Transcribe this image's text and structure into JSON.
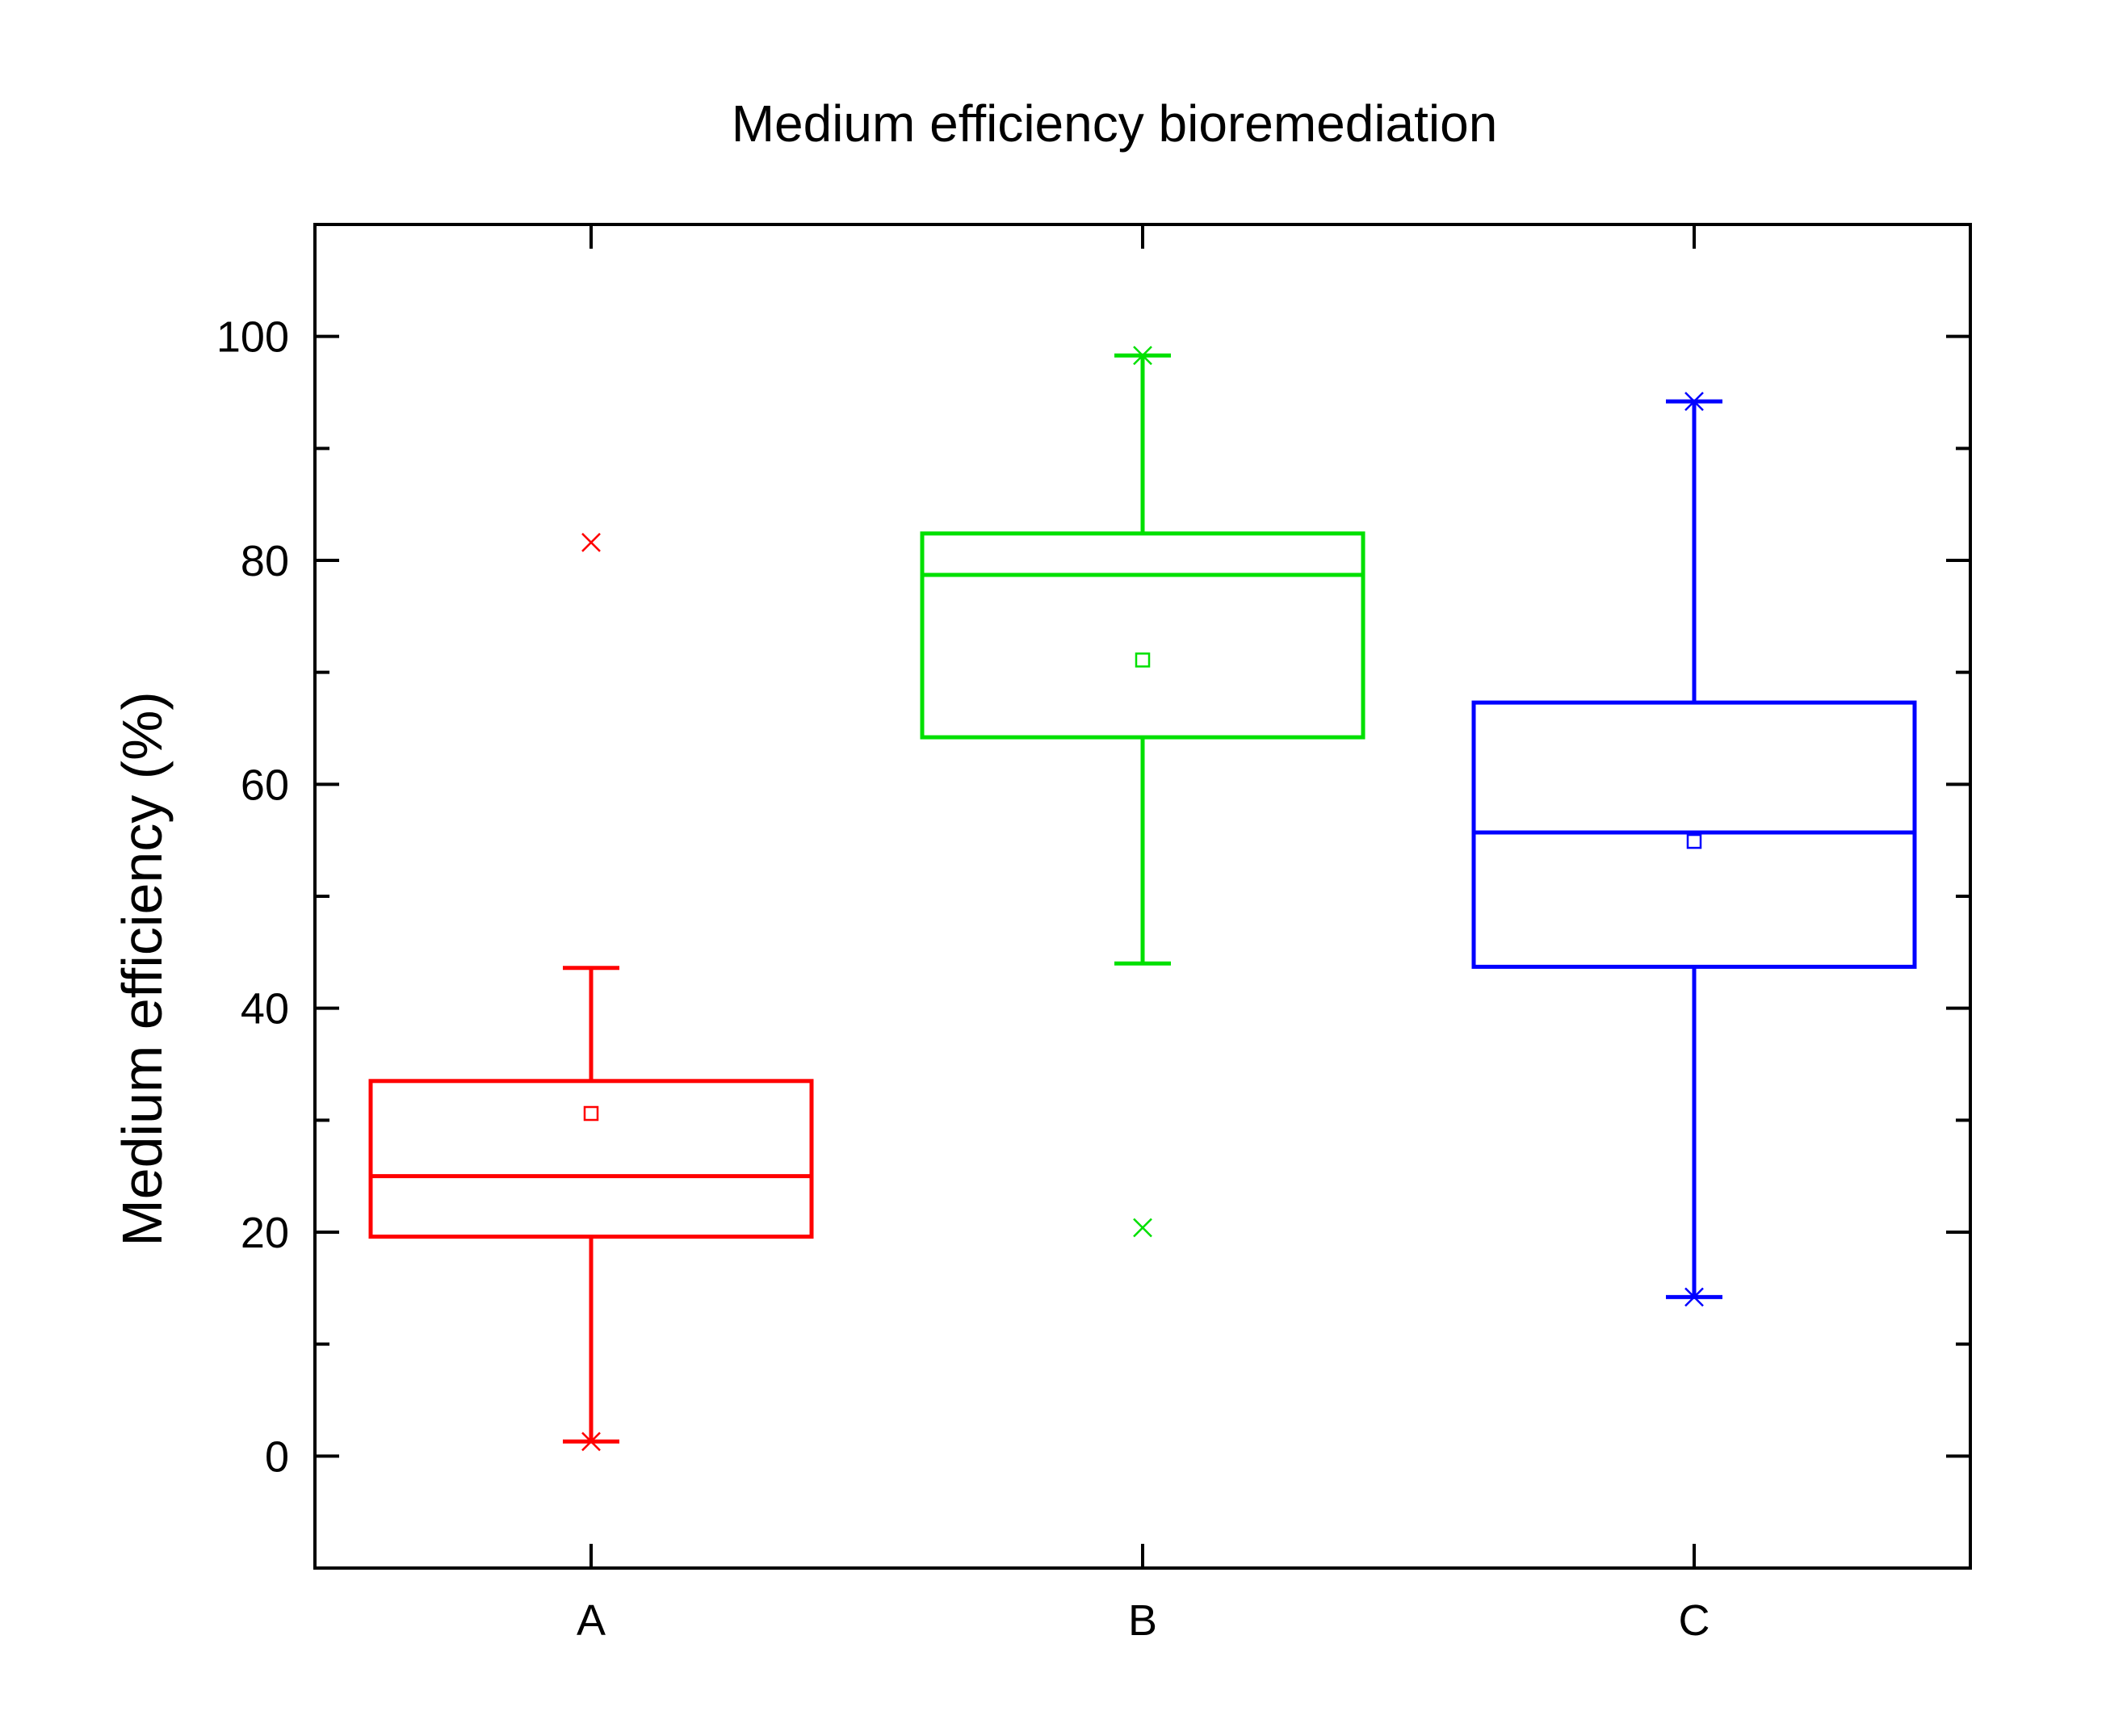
{
  "chart_data": {
    "type": "box",
    "title": "Medium efficiency bioremediation",
    "xlabel": "",
    "ylabel": "Medium efficiency (%)",
    "ylim": [
      -10,
      110
    ],
    "yticks": [
      0,
      20,
      40,
      60,
      80,
      100
    ],
    "grid": false,
    "legend": "none",
    "categories": [
      "A",
      "B",
      "C"
    ],
    "boxes": [
      {
        "category": "A",
        "color": "#ff0000",
        "whisker_low": 1.3,
        "q1": 19.6,
        "median": 25.0,
        "q3": 33.5,
        "whisker_high": 43.6,
        "mean": 30.6,
        "extremes": [
          1.3
        ],
        "outliers": [
          81.6
        ]
      },
      {
        "category": "B",
        "color": "#00e000",
        "whisker_low": 44.0,
        "q1": 64.2,
        "median": 78.7,
        "q3": 82.4,
        "whisker_high": 98.3,
        "mean": 71.1,
        "extremes": [
          98.3
        ],
        "outliers": [
          20.4
        ]
      },
      {
        "category": "C",
        "color": "#0000ff",
        "whisker_low": 14.2,
        "q1": 43.7,
        "median": 55.7,
        "q3": 67.3,
        "whisker_high": 94.2,
        "mean": 54.9,
        "extremes": [
          94.2,
          14.2
        ],
        "outliers": []
      }
    ]
  }
}
